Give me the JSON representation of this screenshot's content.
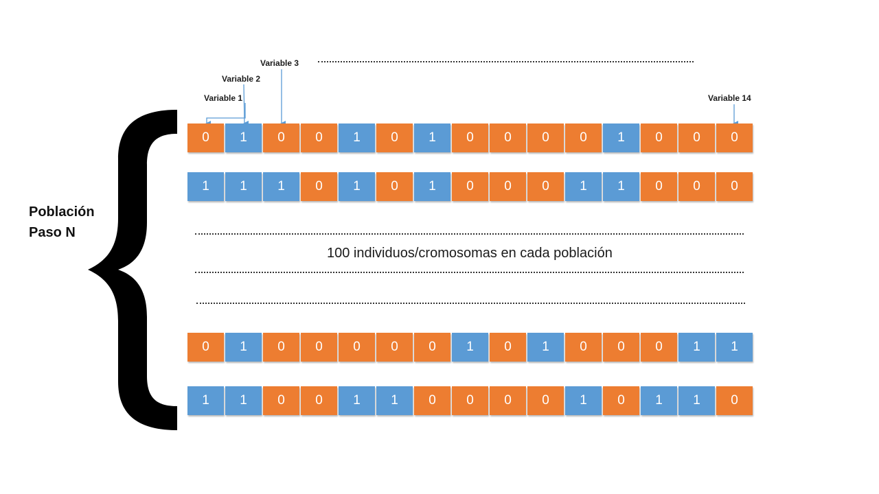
{
  "labels": {
    "variable1": "Variable 1",
    "variable2": "Variable 2",
    "variable3": "Variable 3",
    "variable14": "Variable 14",
    "poblacion_line1": "Población",
    "poblacion_line2": "Paso N",
    "caption": "100 individuos/cromosomas en cada población"
  },
  "colors": {
    "zero": "#ED7D31",
    "one": "#5B9BD5",
    "arrow": "#5B9BD5"
  },
  "rows": [
    {
      "bits": [
        "0",
        "1",
        "0",
        "0",
        "1",
        "0",
        "1",
        "0",
        "0",
        "0",
        "0",
        "1",
        "0",
        "0",
        "0"
      ]
    },
    {
      "bits": [
        "1",
        "1",
        "1",
        "0",
        "1",
        "0",
        "1",
        "0",
        "0",
        "0",
        "1",
        "1",
        "0",
        "0",
        "0"
      ]
    },
    {
      "bits": [
        "0",
        "1",
        "0",
        "0",
        "0",
        "0",
        "0",
        "1",
        "0",
        "1",
        "0",
        "0",
        "0",
        "1",
        "1"
      ]
    },
    {
      "bits": [
        "1",
        "1",
        "0",
        "0",
        "1",
        "1",
        "0",
        "0",
        "0",
        "0",
        "1",
        "0",
        "1",
        "1",
        "0"
      ]
    }
  ]
}
